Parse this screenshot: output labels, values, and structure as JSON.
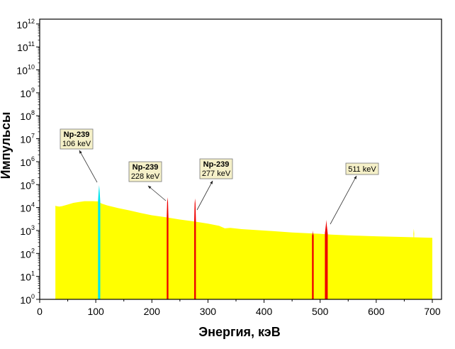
{
  "chart_data": {
    "type": "area",
    "title": "",
    "xlabel": "Энергия, кэВ",
    "ylabel": "Импульсы",
    "xlim": [
      0,
      716
    ],
    "ylim_log10": [
      0,
      12.2
    ],
    "yscale": "log",
    "x_ticks": [
      0,
      100,
      200,
      300,
      400,
      500,
      600,
      700
    ],
    "y_ticks_exponents": [
      0,
      1,
      2,
      3,
      4,
      5,
      6,
      7,
      8,
      9,
      10,
      11,
      12
    ],
    "y_tick_base": "10",
    "grid": false,
    "continuum": {
      "color": "#ffff00",
      "x": [
        28,
        30,
        35,
        40,
        50,
        60,
        70,
        80,
        95,
        105,
        110,
        120,
        140,
        160,
        180,
        200,
        225,
        250,
        275,
        300,
        320,
        330,
        340,
        360,
        400,
        450,
        500,
        520,
        560,
        600,
        650,
        700
      ],
      "counts": [
        12000,
        11500,
        11000,
        11500,
        13500,
        16000,
        17500,
        19000,
        19000,
        18500,
        15000,
        12500,
        9500,
        7500,
        5800,
        4600,
        3800,
        3000,
        2500,
        2000,
        1600,
        1250,
        1300,
        1150,
        1000,
        820,
        720,
        660,
        600,
        560,
        520,
        480
      ]
    },
    "peaks": [
      {
        "energy": 106,
        "counts": 95000,
        "color": "#00e5ee",
        "width_kev": 4
      },
      {
        "energy": 228,
        "counts": 28000,
        "color": "#ee0000",
        "width_kev": 3
      },
      {
        "energy": 277,
        "counts": 25000,
        "color": "#ee0000",
        "width_kev": 3
      },
      {
        "energy": 487,
        "counts": 1000,
        "color": "#ee0000",
        "width_kev": 3
      },
      {
        "energy": 511,
        "counts": 2900,
        "color": "#ee0000",
        "width_kev": 5
      },
      {
        "energy": 667,
        "counts": 1200,
        "color": "#ffff00",
        "width_kev": 1
      }
    ],
    "annotations": [
      {
        "line1": "Np-239",
        "line2": "106 keV",
        "peak_energy": 106
      },
      {
        "line1": "Np-239",
        "line2": "228 keV",
        "peak_energy": 228
      },
      {
        "line1": "Np-239",
        "line2": "277 keV",
        "peak_energy": 277
      },
      {
        "line1": "",
        "line2": "511 keV",
        "peak_energy": 511
      }
    ]
  }
}
